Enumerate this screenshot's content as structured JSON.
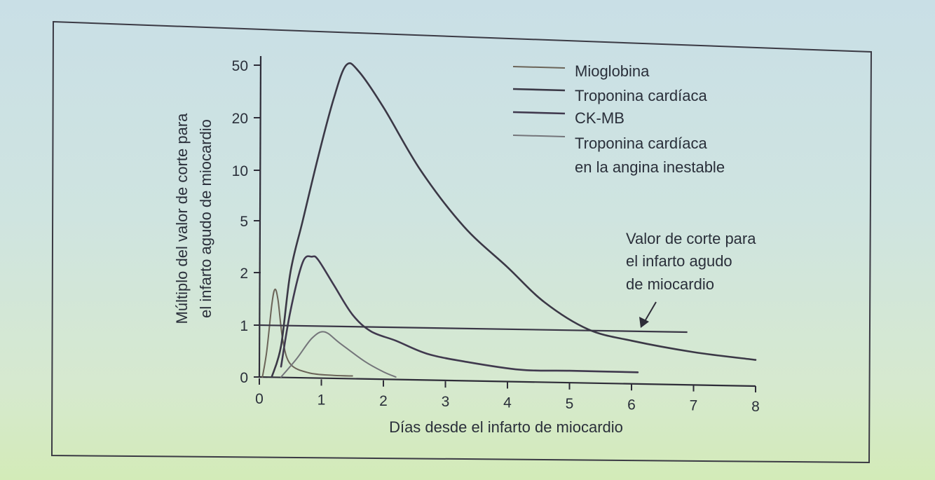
{
  "chart_data": {
    "type": "line",
    "title": "",
    "xlabel": "Días desde el infarto de miocardio",
    "ylabel": [
      "Múltiplo del valor de corte para",
      "el infarto agudo de miocardio"
    ],
    "xlim": [
      0,
      8
    ],
    "x_ticks": [
      "0",
      "1",
      "2",
      "3",
      "4",
      "5",
      "6",
      "7",
      "8"
    ],
    "y_scale": "nonlinear (custom tick spacing)",
    "y_ticks": [
      "0",
      "1",
      "2",
      "5",
      "10",
      "20",
      "50"
    ],
    "grid": false,
    "legend_position": "top-right",
    "legend": [
      "Mioglobina",
      "Troponina cardíaca",
      "CK-MB",
      [
        "Troponina cardíaca",
        "en la angina inestable"
      ]
    ],
    "series": [
      {
        "name": "Mioglobina",
        "color": "#6b6458",
        "points": [
          [
            0.05,
            0
          ],
          [
            0.12,
            0.5
          ],
          [
            0.2,
            1.3
          ],
          [
            0.25,
            1.6
          ],
          [
            0.3,
            1.4
          ],
          [
            0.38,
            0.7
          ],
          [
            0.5,
            0.25
          ],
          [
            0.8,
            0.08
          ],
          [
            1.2,
            0.03
          ],
          [
            1.5,
            0.02
          ]
        ]
      },
      {
        "name": "Troponina cardíaca",
        "color": "#3b3846",
        "points": [
          [
            0.2,
            0
          ],
          [
            0.35,
            0.6
          ],
          [
            0.5,
            2
          ],
          [
            0.7,
            5
          ],
          [
            0.95,
            12
          ],
          [
            1.2,
            28
          ],
          [
            1.4,
            50
          ],
          [
            1.6,
            45
          ],
          [
            2.0,
            24
          ],
          [
            2.6,
            10
          ],
          [
            3.3,
            4.5
          ],
          [
            4.0,
            2.2
          ],
          [
            4.6,
            1.35
          ],
          [
            5.3,
            0.92
          ],
          [
            6.0,
            0.7
          ],
          [
            7.0,
            0.48
          ],
          [
            8.0,
            0.33
          ]
        ]
      },
      {
        "name": "CK-MB",
        "color": "#40394e",
        "points": [
          [
            0.35,
            0.2
          ],
          [
            0.5,
            1.2
          ],
          [
            0.7,
            2.4
          ],
          [
            0.85,
            2.65
          ],
          [
            0.95,
            2.5
          ],
          [
            1.2,
            1.7
          ],
          [
            1.5,
            1.15
          ],
          [
            1.8,
            0.88
          ],
          [
            2.2,
            0.7
          ],
          [
            2.7,
            0.45
          ],
          [
            3.3,
            0.3
          ],
          [
            4.2,
            0.14
          ],
          [
            5.0,
            0.12
          ],
          [
            6.1,
            0.09
          ]
        ]
      },
      {
        "name": "Troponina cardíaca en la angina inestable",
        "color": "#74757a",
        "points": [
          [
            0.35,
            0
          ],
          [
            0.6,
            0.35
          ],
          [
            0.85,
            0.75
          ],
          [
            1.05,
            0.87
          ],
          [
            1.3,
            0.65
          ],
          [
            1.7,
            0.3
          ],
          [
            2.0,
            0.1
          ],
          [
            2.2,
            0
          ]
        ]
      }
    ],
    "cutoff_line": {
      "value": 1,
      "x_range": [
        0,
        6.9
      ]
    },
    "annotation": {
      "lines": [
        "Valor de corte para",
        "el infarto agudo",
        "de miocardio"
      ],
      "points_to": "cutoff_line"
    }
  },
  "colors": {
    "axis": "#2e2c38",
    "frame": "#3b3a44",
    "cutoff": "#3a3646"
  }
}
